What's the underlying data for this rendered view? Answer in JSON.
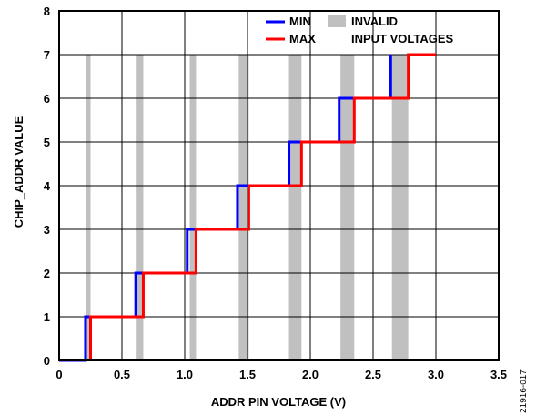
{
  "chart_data": {
    "type": "line",
    "xlabel": "ADDR PIN VOLTAGE (V)",
    "ylabel": "CHIP_ADDR VALUE",
    "xlim": [
      0,
      3.5
    ],
    "ylim": [
      0,
      8
    ],
    "xticks": [
      "0",
      "0.5",
      "1.0",
      "1.5",
      "2.0",
      "2.5",
      "3.0",
      "3.5"
    ],
    "yticks": [
      "0",
      "1",
      "2",
      "3",
      "4",
      "5",
      "6",
      "7",
      "8"
    ],
    "grid": true,
    "legend_position": "top-right",
    "series": [
      {
        "name": "MIN",
        "color": "#0000ff",
        "x": [
          0,
          0.21,
          0.21,
          0.61,
          0.61,
          1.02,
          1.02,
          1.42,
          1.42,
          1.83,
          1.83,
          2.23,
          2.23,
          2.64,
          2.64
        ],
        "y": [
          0,
          0,
          1,
          1,
          2,
          2,
          3,
          3,
          4,
          4,
          5,
          5,
          6,
          6,
          7
        ]
      },
      {
        "name": "MAX",
        "color": "#ff0000",
        "x": [
          0.25,
          0.25,
          0.67,
          0.67,
          1.09,
          1.09,
          1.51,
          1.51,
          1.93,
          1.93,
          2.35,
          2.35,
          2.78,
          2.78,
          3.0
        ],
        "y": [
          0,
          1,
          1,
          2,
          2,
          3,
          3,
          4,
          4,
          5,
          5,
          6,
          6,
          7,
          7
        ]
      }
    ],
    "invalid_bands": {
      "name": "INVALID INPUT VOLTAGES",
      "color": "#c0c0c0",
      "ranges": [
        [
          0.21,
          0.25
        ],
        [
          0.61,
          0.67
        ],
        [
          1.04,
          1.09
        ],
        [
          1.43,
          1.51
        ],
        [
          1.83,
          1.93
        ],
        [
          2.24,
          2.35
        ],
        [
          2.65,
          2.78
        ]
      ],
      "ymax": 7
    }
  },
  "legend": {
    "min_label": "MIN",
    "max_label": "MAX",
    "invalid_line1": "INVALID",
    "invalid_line2": "INPUT VOLTAGES"
  },
  "figure_id": "21916-017"
}
